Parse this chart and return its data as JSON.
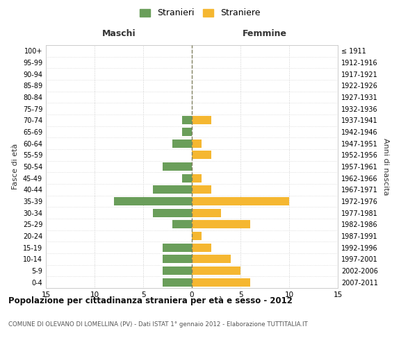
{
  "age_groups": [
    "0-4",
    "5-9",
    "10-14",
    "15-19",
    "20-24",
    "25-29",
    "30-34",
    "35-39",
    "40-44",
    "45-49",
    "50-54",
    "55-59",
    "60-64",
    "65-69",
    "70-74",
    "75-79",
    "80-84",
    "85-89",
    "90-94",
    "95-99",
    "100+"
  ],
  "birth_years": [
    "2007-2011",
    "2002-2006",
    "1997-2001",
    "1992-1996",
    "1987-1991",
    "1982-1986",
    "1977-1981",
    "1972-1976",
    "1967-1971",
    "1962-1966",
    "1957-1961",
    "1952-1956",
    "1947-1951",
    "1942-1946",
    "1937-1941",
    "1932-1936",
    "1927-1931",
    "1922-1926",
    "1917-1921",
    "1912-1916",
    "≤ 1911"
  ],
  "maschi": [
    3,
    3,
    3,
    3,
    0,
    2,
    4,
    8,
    4,
    1,
    3,
    0,
    2,
    1,
    1,
    0,
    0,
    0,
    0,
    0,
    0
  ],
  "femmine": [
    6,
    5,
    4,
    2,
    1,
    6,
    3,
    10,
    2,
    1,
    0,
    2,
    1,
    0,
    2,
    0,
    0,
    0,
    0,
    0,
    0
  ],
  "maschi_color": "#6a9e5a",
  "femmine_color": "#f5b731",
  "title": "Popolazione per cittadinanza straniera per età e sesso - 2012",
  "subtitle": "COMUNE DI OLEVANO DI LOMELLINA (PV) - Dati ISTAT 1° gennaio 2012 - Elaborazione TUTTITALIA.IT",
  "ylabel_left": "Fasce di età",
  "ylabel_right": "Anni di nascita",
  "xlabel_maschi": "Maschi",
  "xlabel_femmine": "Femmine",
  "legend_maschi": "Stranieri",
  "legend_femmine": "Straniere",
  "xlim": 15,
  "background_color": "#ffffff",
  "grid_color": "#cccccc",
  "dashed_line_color": "#808060"
}
